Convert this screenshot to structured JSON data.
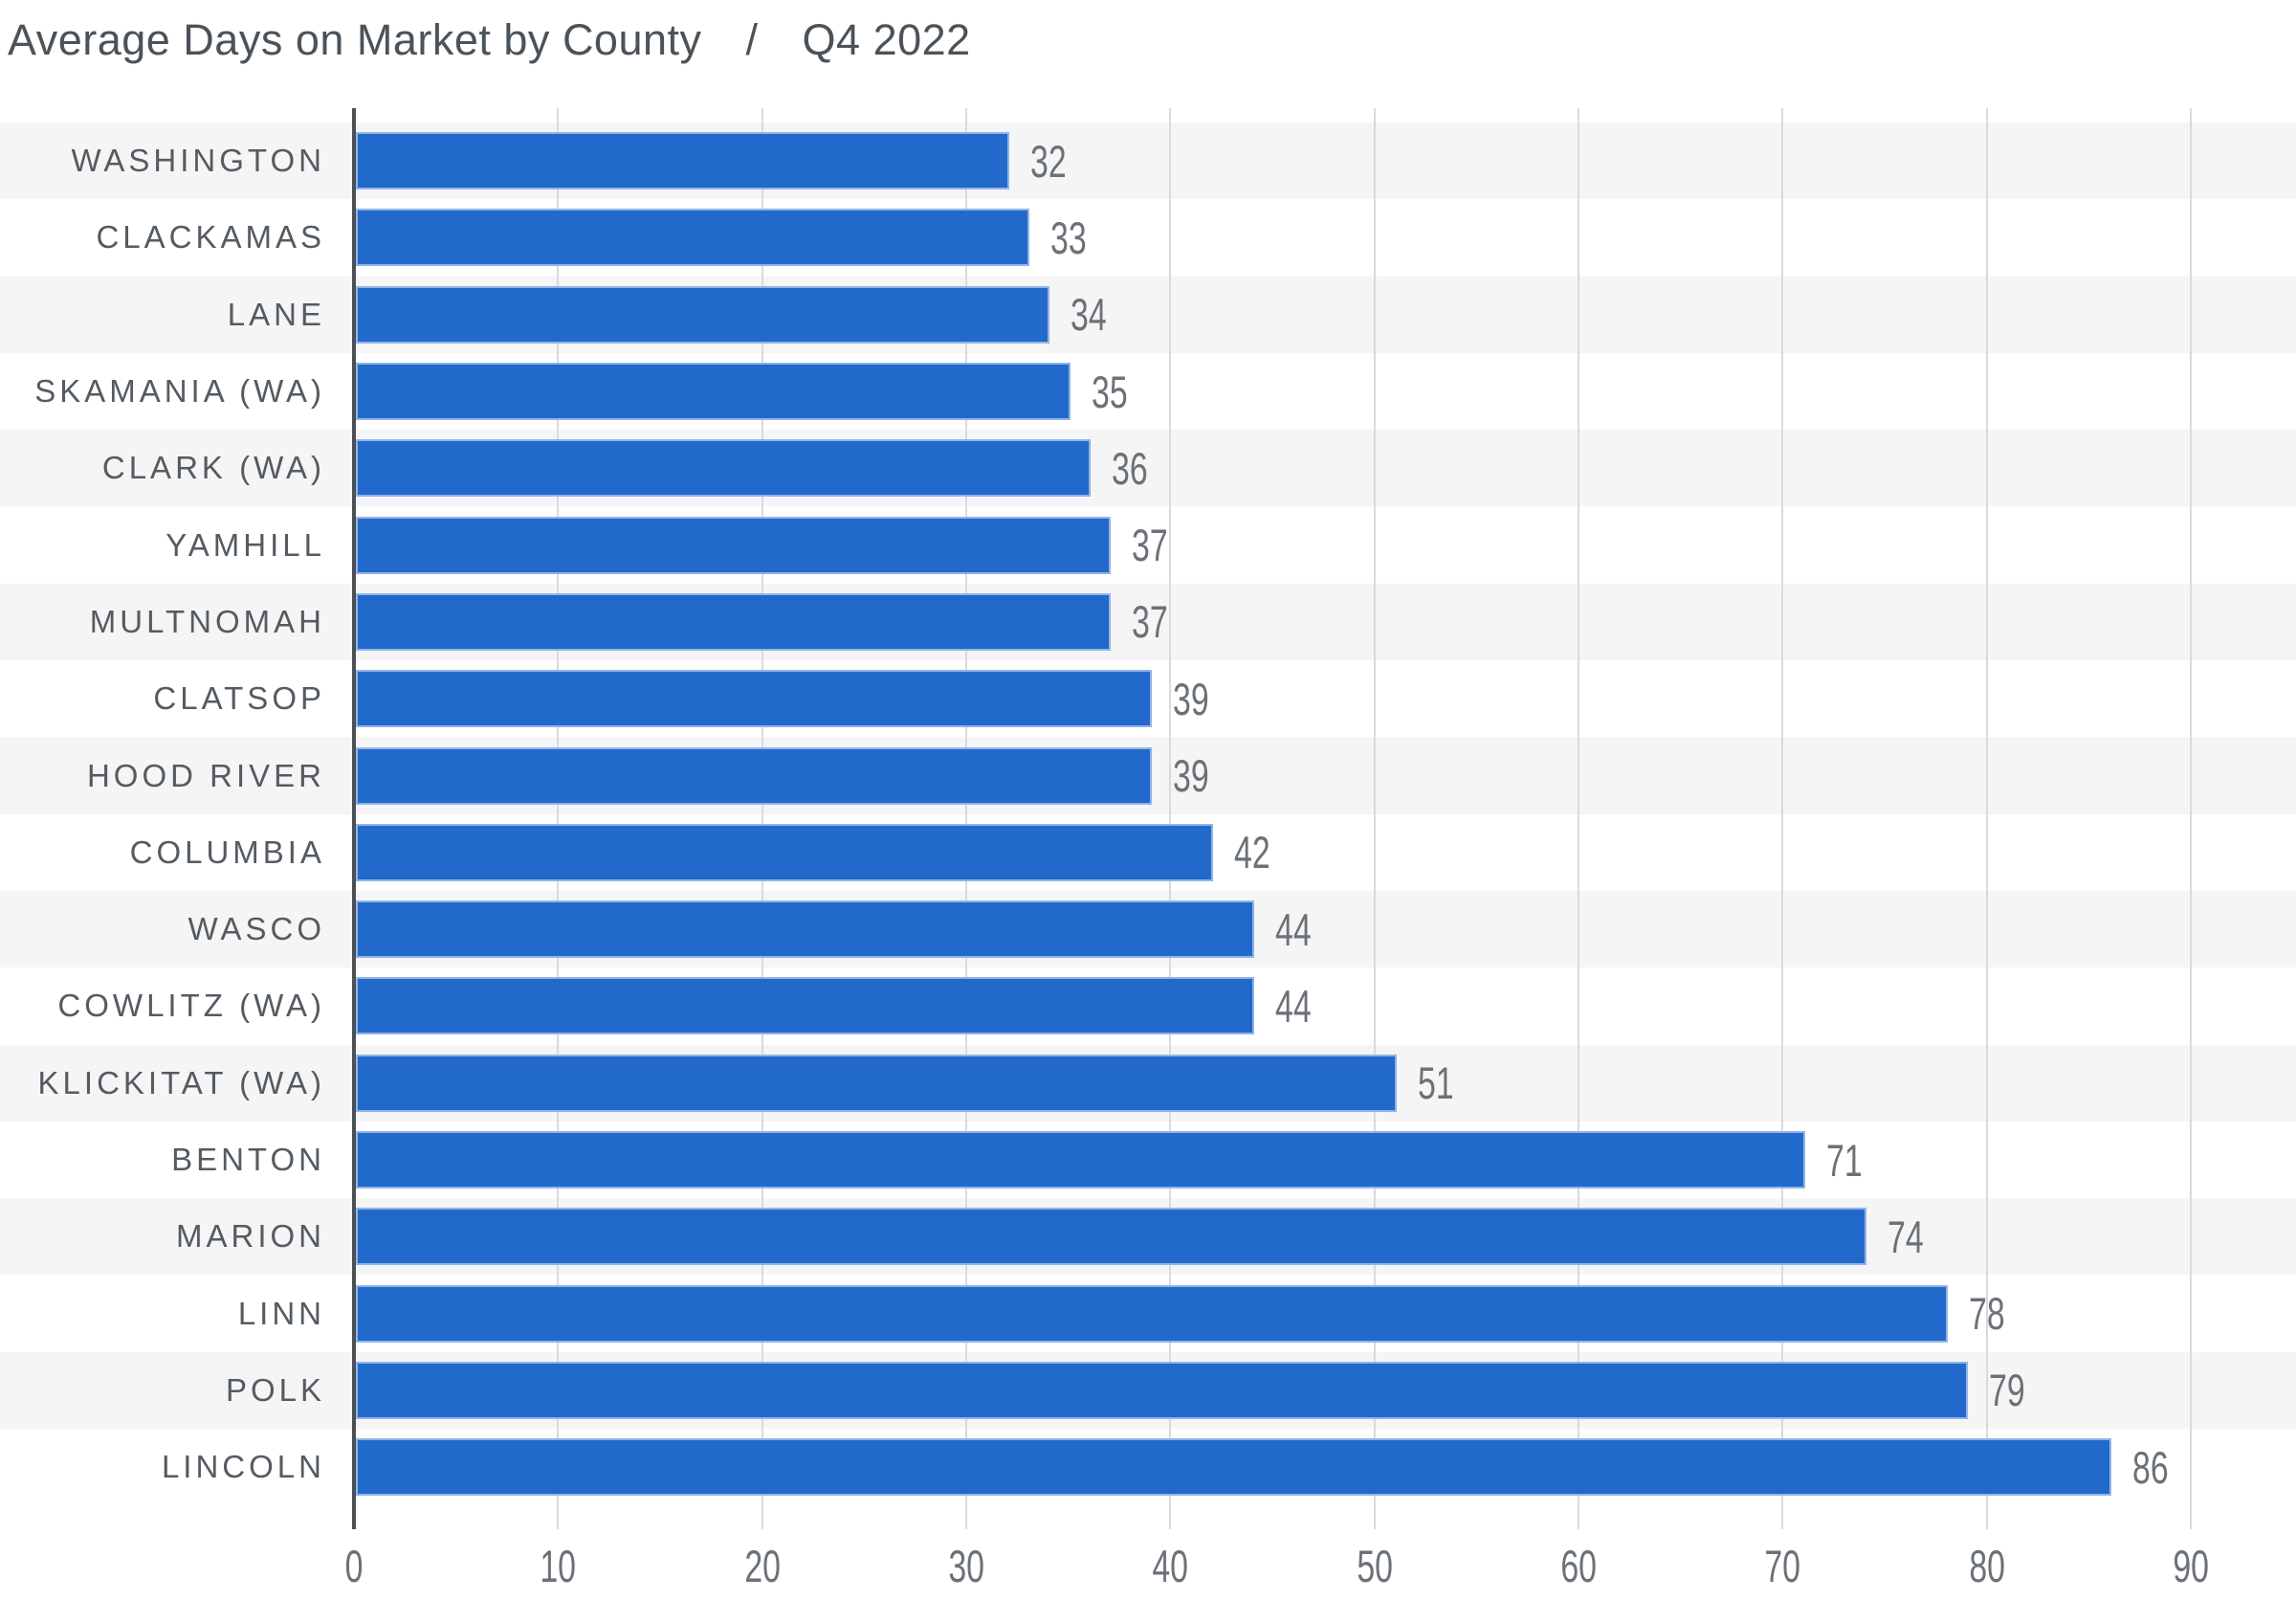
{
  "title": {
    "main": "Average Days on Market by County",
    "separator": "/",
    "period": "Q4 2022"
  },
  "chart_data": {
    "type": "bar",
    "orientation": "horizontal",
    "title": "Average Days on Market by County / Q4 2022",
    "categories": [
      "WASHINGTON",
      "CLACKAMAS",
      "LANE",
      "SKAMANIA (WA)",
      "CLARK (WA)",
      "YAMHILL",
      "MULTNOMAH",
      "CLATSOP",
      "HOOD RIVER",
      "COLUMBIA",
      "WASCO",
      "COWLITZ (WA)",
      "KLICKITAT (WA)",
      "BENTON",
      "MARION",
      "LINN",
      "POLK",
      "LINCOLN"
    ],
    "values": [
      32,
      33,
      34,
      35,
      36,
      37,
      37,
      39,
      39,
      42,
      44,
      44,
      51,
      71,
      74,
      78,
      79,
      86
    ],
    "xlabel": "",
    "ylabel": "",
    "xlim": [
      0,
      90
    ],
    "x_ticks": [
      0,
      10,
      20,
      30,
      40,
      50,
      60,
      70,
      80,
      90
    ],
    "grid": true,
    "value_labels_shown": true,
    "legend": "none",
    "row_shading": "alternating"
  },
  "colors": {
    "bar": "#2269cc",
    "row_band": "#f5f5f6",
    "gridline": "#d9dadc",
    "axis_line": "#4a5056",
    "title_text": "#4b535a",
    "category_text": "#545b62",
    "value_text": "#6b7177"
  }
}
